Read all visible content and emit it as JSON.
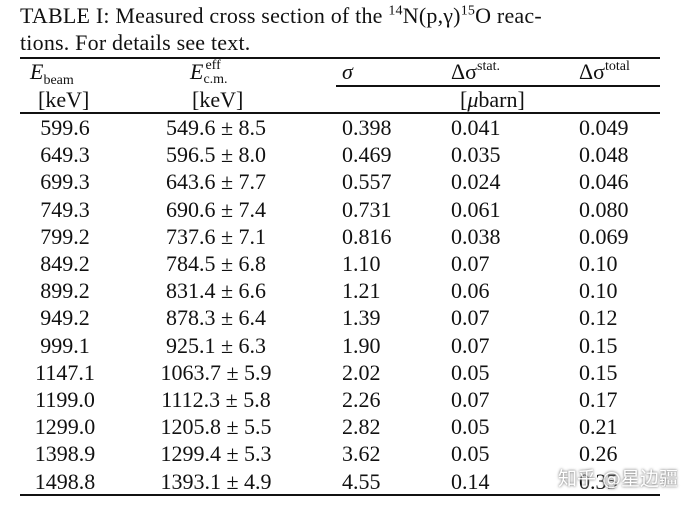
{
  "caption": {
    "prefix": "TABLE I: Measured cross section of the ",
    "iso1": "14",
    "reaction_mid": "N(p,γ)",
    "iso2": "15",
    "suffix_line1": "O reac-",
    "line2": "tions. For details see text."
  },
  "headers": {
    "e_beam_sym": "E",
    "e_beam_sub": "beam",
    "e_beam_unit": "[keV]",
    "e_cm_sym": "E",
    "e_cm_sup": "eff",
    "e_cm_sub": "c.m.",
    "e_cm_unit": "[keV]",
    "sigma": "σ",
    "dstat_delta": "Δσ",
    "dstat_sup": "stat.",
    "dtotal_delta": "Δσ",
    "dtotal_sup": "total",
    "sigma_unit_mu": "μ",
    "sigma_unit": "barn]",
    "sigma_unit_open": "["
  },
  "rows": [
    {
      "ebeam": "599.6",
      "ecm": "549.6 ± 8.5",
      "sigma": "0.398",
      "dstat": "0.041",
      "dtotal": "0.049"
    },
    {
      "ebeam": "649.3",
      "ecm": "596.5 ± 8.0",
      "sigma": "0.469",
      "dstat": "0.035",
      "dtotal": "0.048"
    },
    {
      "ebeam": "699.3",
      "ecm": "643.6 ± 7.7",
      "sigma": "0.557",
      "dstat": "0.024",
      "dtotal": "0.046"
    },
    {
      "ebeam": "749.3",
      "ecm": "690.6 ± 7.4",
      "sigma": "0.731",
      "dstat": "0.061",
      "dtotal": "0.080"
    },
    {
      "ebeam": "799.2",
      "ecm": "737.6 ± 7.1",
      "sigma": "0.816",
      "dstat": "0.038",
      "dtotal": "0.069"
    },
    {
      "ebeam": "849.2",
      "ecm": "784.5 ± 6.8",
      "sigma": "1.10",
      "dstat": "0.07",
      "dtotal": "0.10"
    },
    {
      "ebeam": "899.2",
      "ecm": "831.4 ± 6.6",
      "sigma": "1.21",
      "dstat": "0.06",
      "dtotal": "0.10"
    },
    {
      "ebeam": "949.2",
      "ecm": "878.3 ± 6.4",
      "sigma": "1.39",
      "dstat": "0.07",
      "dtotal": "0.12"
    },
    {
      "ebeam": "999.1",
      "ecm": "925.1 ± 6.3",
      "sigma": "1.90",
      "dstat": "0.07",
      "dtotal": "0.15"
    },
    {
      "ebeam": "1147.1",
      "ecm": "1063.7 ± 5.9",
      "sigma": "2.02",
      "dstat": "0.05",
      "dtotal": "0.15"
    },
    {
      "ebeam": "1199.0",
      "ecm": "1112.3 ± 5.8",
      "sigma": "2.26",
      "dstat": "0.07",
      "dtotal": "0.17"
    },
    {
      "ebeam": "1299.0",
      "ecm": "1205.8 ± 5.5",
      "sigma": "2.82",
      "dstat": "0.05",
      "dtotal": "0.21"
    },
    {
      "ebeam": "1398.9",
      "ecm": "1299.4 ± 5.3",
      "sigma": "3.62",
      "dstat": "0.05",
      "dtotal": "0.26"
    },
    {
      "ebeam": "1498.8",
      "ecm": "1393.1 ± 4.9",
      "sigma": "4.55",
      "dstat": "0.14",
      "dtotal": "0.35"
    }
  ],
  "watermark": "知乎 @星边疆"
}
